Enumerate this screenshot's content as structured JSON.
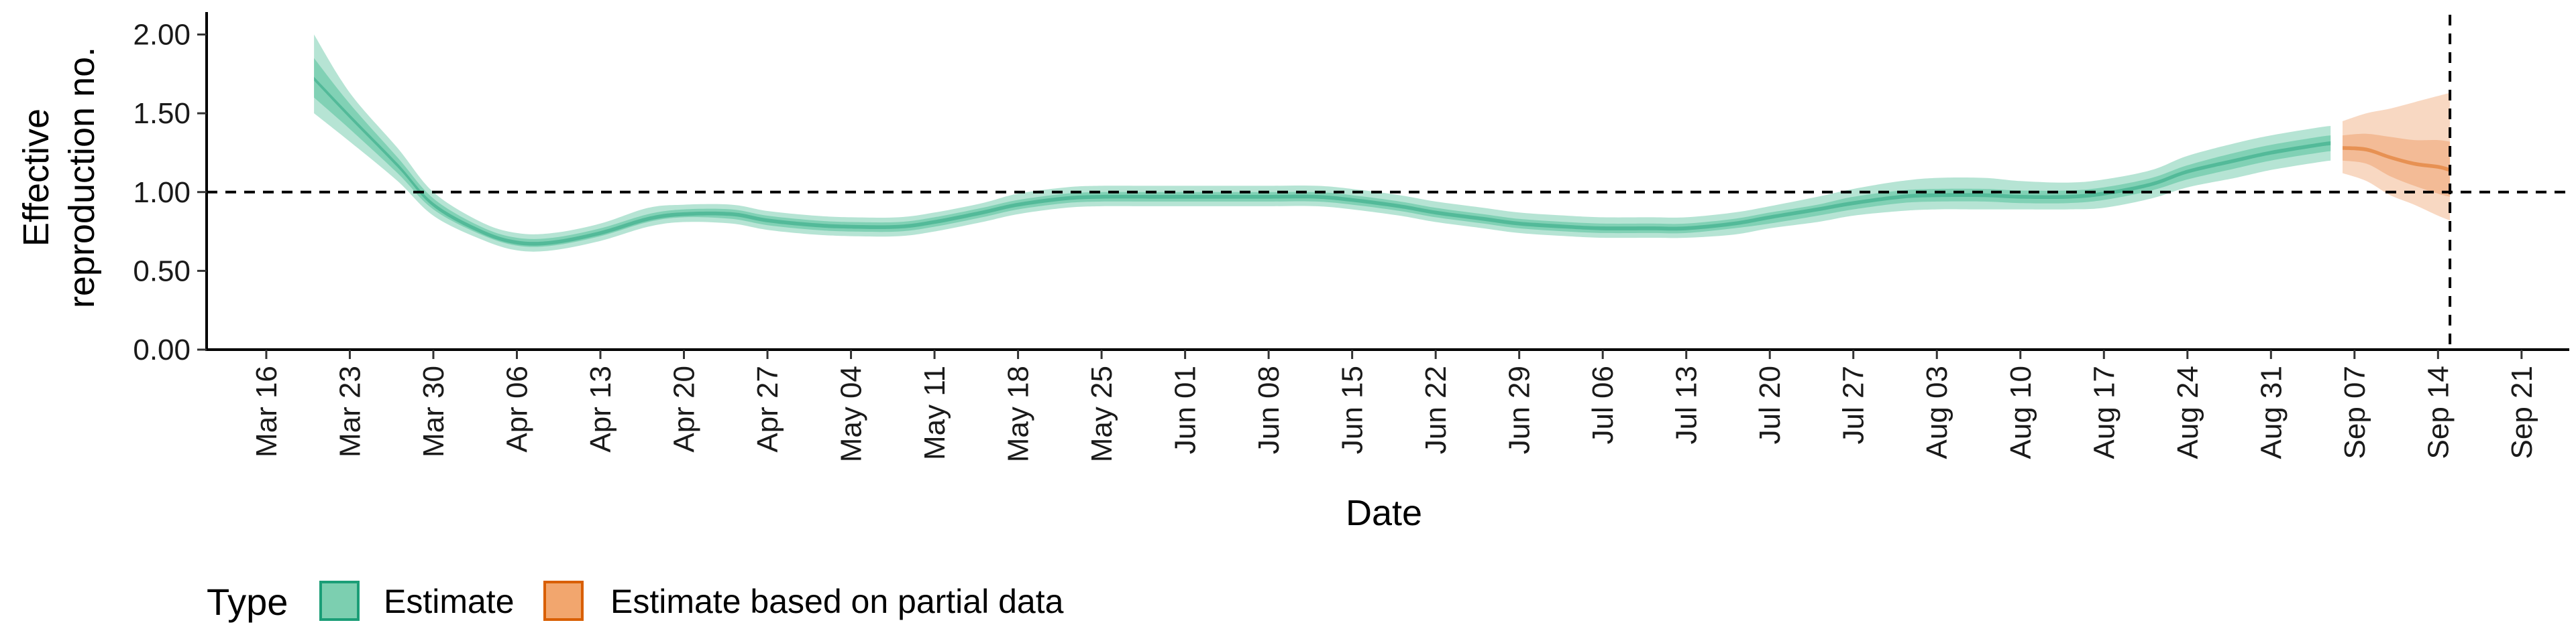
{
  "chart_data": {
    "type": "area",
    "title": "",
    "xlabel": "Date",
    "ylabel_lines": [
      "Effective",
      "reproduction no."
    ],
    "ylim": [
      0,
      2.1
    ],
    "yticks": [
      {
        "value": 0,
        "label": "0.00"
      },
      {
        "value": 0.5,
        "label": "0.50"
      },
      {
        "value": 1.0,
        "label": "1.00"
      },
      {
        "value": 1.5,
        "label": "1.50"
      },
      {
        "value": 2.0,
        "label": "2.00"
      }
    ],
    "xlim": [
      "2020-03-11",
      "2020-09-25"
    ],
    "xticks": [
      {
        "date": "2020-03-16",
        "label": "Mar 16"
      },
      {
        "date": "2020-03-23",
        "label": "Mar 23"
      },
      {
        "date": "2020-03-30",
        "label": "Mar 30"
      },
      {
        "date": "2020-04-06",
        "label": "Apr 06"
      },
      {
        "date": "2020-04-13",
        "label": "Apr 13"
      },
      {
        "date": "2020-04-20",
        "label": "Apr 20"
      },
      {
        "date": "2020-04-27",
        "label": "Apr 27"
      },
      {
        "date": "2020-05-04",
        "label": "May 04"
      },
      {
        "date": "2020-05-11",
        "label": "May 11"
      },
      {
        "date": "2020-05-18",
        "label": "May 18"
      },
      {
        "date": "2020-05-25",
        "label": "May 25"
      },
      {
        "date": "2020-06-01",
        "label": "Jun 01"
      },
      {
        "date": "2020-06-08",
        "label": "Jun 08"
      },
      {
        "date": "2020-06-15",
        "label": "Jun 15"
      },
      {
        "date": "2020-06-22",
        "label": "Jun 22"
      },
      {
        "date": "2020-06-29",
        "label": "Jun 29"
      },
      {
        "date": "2020-07-06",
        "label": "Jul 06"
      },
      {
        "date": "2020-07-13",
        "label": "Jul 13"
      },
      {
        "date": "2020-07-20",
        "label": "Jul 20"
      },
      {
        "date": "2020-07-27",
        "label": "Jul 27"
      },
      {
        "date": "2020-08-03",
        "label": "Aug 03"
      },
      {
        "date": "2020-08-10",
        "label": "Aug 10"
      },
      {
        "date": "2020-08-17",
        "label": "Aug 17"
      },
      {
        "date": "2020-08-24",
        "label": "Aug 24"
      },
      {
        "date": "2020-08-31",
        "label": "Aug 31"
      },
      {
        "date": "2020-09-07",
        "label": "Sep 07"
      },
      {
        "date": "2020-09-14",
        "label": "Sep 14"
      },
      {
        "date": "2020-09-21",
        "label": "Sep 21"
      }
    ],
    "reference_lines": {
      "horizontal_y": 1.0,
      "vertical_date": "2020-09-15",
      "style": "dashed"
    },
    "legend": {
      "title": "Type",
      "placement": "bottom-left",
      "entries": [
        {
          "label": "Estimate",
          "series": "estimate"
        },
        {
          "label": "Estimate based on partial data",
          "series": "partial"
        }
      ]
    },
    "series": [
      {
        "name": "Estimate",
        "key": "estimate",
        "fill_color": "#5ec4a0",
        "border_color": "#1b9e77",
        "x": [
          "2020-03-20",
          "2020-03-23",
          "2020-03-27",
          "2020-03-30",
          "2020-04-03",
          "2020-04-06",
          "2020-04-09",
          "2020-04-13",
          "2020-04-17",
          "2020-04-20",
          "2020-04-24",
          "2020-04-27",
          "2020-05-01",
          "2020-05-04",
          "2020-05-08",
          "2020-05-11",
          "2020-05-15",
          "2020-05-18",
          "2020-05-22",
          "2020-05-25",
          "2020-05-29",
          "2020-06-01",
          "2020-06-05",
          "2020-06-08",
          "2020-06-12",
          "2020-06-15",
          "2020-06-19",
          "2020-06-22",
          "2020-06-26",
          "2020-06-29",
          "2020-07-03",
          "2020-07-06",
          "2020-07-10",
          "2020-07-13",
          "2020-07-17",
          "2020-07-20",
          "2020-07-24",
          "2020-07-27",
          "2020-07-31",
          "2020-08-03",
          "2020-08-07",
          "2020-08-10",
          "2020-08-14",
          "2020-08-17",
          "2020-08-21",
          "2020-08-24",
          "2020-08-28",
          "2020-08-31",
          "2020-09-04",
          "2020-09-05"
        ],
        "median": [
          1.72,
          1.48,
          1.17,
          0.92,
          0.75,
          0.68,
          0.68,
          0.74,
          0.83,
          0.86,
          0.86,
          0.82,
          0.79,
          0.78,
          0.78,
          0.81,
          0.87,
          0.92,
          0.96,
          0.97,
          0.97,
          0.97,
          0.97,
          0.97,
          0.97,
          0.95,
          0.91,
          0.87,
          0.83,
          0.8,
          0.78,
          0.77,
          0.77,
          0.77,
          0.8,
          0.84,
          0.89,
          0.93,
          0.97,
          0.98,
          0.98,
          0.97,
          0.97,
          0.99,
          1.05,
          1.13,
          1.2,
          1.25,
          1.3,
          1.31
        ],
        "inner": [
          [
            1.6,
            1.85
          ],
          [
            1.4,
            1.56
          ],
          [
            1.12,
            1.22
          ],
          [
            0.89,
            0.96
          ],
          [
            0.73,
            0.78
          ],
          [
            0.66,
            0.71
          ],
          [
            0.66,
            0.71
          ],
          [
            0.72,
            0.77
          ],
          [
            0.81,
            0.86
          ],
          [
            0.84,
            0.89
          ],
          [
            0.83,
            0.89
          ],
          [
            0.79,
            0.85
          ],
          [
            0.76,
            0.82
          ],
          [
            0.75,
            0.81
          ],
          [
            0.75,
            0.81
          ],
          [
            0.78,
            0.84
          ],
          [
            0.84,
            0.9
          ],
          [
            0.89,
            0.95
          ],
          [
            0.93,
            0.99
          ],
          [
            0.94,
            1.0
          ],
          [
            0.94,
            1.0
          ],
          [
            0.94,
            1.0
          ],
          [
            0.94,
            1.0
          ],
          [
            0.94,
            1.0
          ],
          [
            0.94,
            1.0
          ],
          [
            0.92,
            0.98
          ],
          [
            0.88,
            0.94
          ],
          [
            0.84,
            0.9
          ],
          [
            0.8,
            0.86
          ],
          [
            0.77,
            0.83
          ],
          [
            0.75,
            0.81
          ],
          [
            0.74,
            0.8
          ],
          [
            0.74,
            0.8
          ],
          [
            0.74,
            0.8
          ],
          [
            0.77,
            0.83
          ],
          [
            0.8,
            0.87
          ],
          [
            0.85,
            0.92
          ],
          [
            0.89,
            0.97
          ],
          [
            0.93,
            1.01
          ],
          [
            0.94,
            1.02
          ],
          [
            0.94,
            1.02
          ],
          [
            0.93,
            1.01
          ],
          [
            0.93,
            1.01
          ],
          [
            0.95,
            1.03
          ],
          [
            1.01,
            1.09
          ],
          [
            1.08,
            1.17
          ],
          [
            1.15,
            1.25
          ],
          [
            1.2,
            1.3
          ],
          [
            1.25,
            1.35
          ],
          [
            1.26,
            1.36
          ]
        ],
        "outer": [
          [
            1.5,
            2.0
          ],
          [
            1.32,
            1.63
          ],
          [
            1.07,
            1.28
          ],
          [
            0.85,
            1.0
          ],
          [
            0.7,
            0.81
          ],
          [
            0.63,
            0.74
          ],
          [
            0.63,
            0.74
          ],
          [
            0.69,
            0.8
          ],
          [
            0.78,
            0.9
          ],
          [
            0.81,
            0.92
          ],
          [
            0.8,
            0.92
          ],
          [
            0.76,
            0.88
          ],
          [
            0.73,
            0.85
          ],
          [
            0.72,
            0.84
          ],
          [
            0.72,
            0.84
          ],
          [
            0.75,
            0.87
          ],
          [
            0.81,
            0.93
          ],
          [
            0.86,
            0.99
          ],
          [
            0.9,
            1.03
          ],
          [
            0.91,
            1.04
          ],
          [
            0.91,
            1.04
          ],
          [
            0.91,
            1.04
          ],
          [
            0.91,
            1.04
          ],
          [
            0.91,
            1.04
          ],
          [
            0.91,
            1.04
          ],
          [
            0.89,
            1.02
          ],
          [
            0.85,
            0.98
          ],
          [
            0.81,
            0.94
          ],
          [
            0.77,
            0.9
          ],
          [
            0.74,
            0.87
          ],
          [
            0.72,
            0.85
          ],
          [
            0.71,
            0.84
          ],
          [
            0.71,
            0.84
          ],
          [
            0.71,
            0.84
          ],
          [
            0.73,
            0.87
          ],
          [
            0.77,
            0.91
          ],
          [
            0.81,
            0.97
          ],
          [
            0.85,
            1.02
          ],
          [
            0.88,
            1.07
          ],
          [
            0.89,
            1.09
          ],
          [
            0.89,
            1.09
          ],
          [
            0.89,
            1.07
          ],
          [
            0.89,
            1.06
          ],
          [
            0.9,
            1.08
          ],
          [
            0.96,
            1.14
          ],
          [
            1.03,
            1.23
          ],
          [
            1.09,
            1.31
          ],
          [
            1.14,
            1.36
          ],
          [
            1.19,
            1.41
          ],
          [
            1.2,
            1.42
          ]
        ]
      },
      {
        "name": "Estimate based on partial data",
        "key": "partial",
        "fill_color": "#f0a878",
        "border_color": "#d95f02",
        "x": [
          "2020-09-06",
          "2020-09-08",
          "2020-09-10",
          "2020-09-12",
          "2020-09-14",
          "2020-09-15"
        ],
        "median": [
          1.28,
          1.27,
          1.22,
          1.18,
          1.16,
          1.14
        ],
        "inner": [
          [
            1.2,
            1.36
          ],
          [
            1.18,
            1.37
          ],
          [
            1.1,
            1.35
          ],
          [
            1.04,
            1.33
          ],
          [
            0.99,
            1.33
          ],
          [
            0.97,
            1.32
          ]
        ],
        "outer": [
          [
            1.12,
            1.45
          ],
          [
            1.07,
            1.5
          ],
          [
            0.98,
            1.53
          ],
          [
            0.92,
            1.57
          ],
          [
            0.85,
            1.61
          ],
          [
            0.82,
            1.63
          ]
        ]
      }
    ]
  }
}
